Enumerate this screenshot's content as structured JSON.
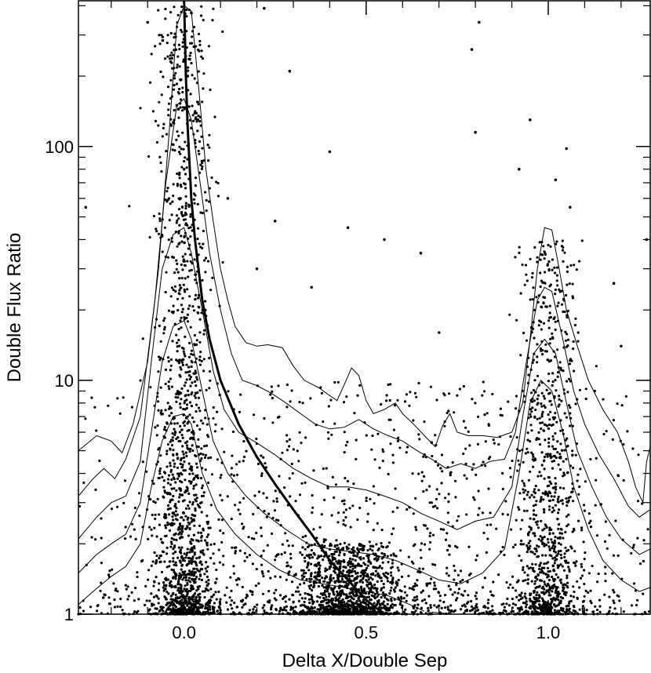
{
  "chart_data": {
    "type": "scatter",
    "title": "",
    "xlabel": "Delta X/Double Sep",
    "ylabel": "Double Flux Ratio",
    "xlim": [
      -0.29,
      1.28
    ],
    "ylim": [
      1,
      420
    ],
    "y_scale": "log",
    "x_ticks": [
      {
        "value": 0.0,
        "label": "0.0"
      },
      {
        "value": 0.5,
        "label": "0.5"
      },
      {
        "value": 1.0,
        "label": "1.0"
      }
    ],
    "y_ticks": [
      {
        "value": 1,
        "label": "1"
      },
      {
        "value": 10,
        "label": "10"
      },
      {
        "value": 100,
        "label": "100"
      }
    ],
    "grid": false,
    "legend": "none",
    "colors": {
      "points": "#000000",
      "contours": "#000000",
      "curve": "#000000",
      "background": "#ffffff"
    },
    "point_density_clusters": [
      {
        "x_center": 0.0,
        "x_spread": 0.04,
        "log_y_max": 2.6,
        "weight": 0.3
      },
      {
        "x_center": 0.45,
        "x_spread": 0.07,
        "log_y_max": 0.3,
        "weight": 0.2
      },
      {
        "x_center": 1.0,
        "x_spread": 0.04,
        "log_y_max": 1.6,
        "weight": 0.18
      },
      {
        "x_center": 0.5,
        "x_spread": 0.5,
        "log_y_max": 1.0,
        "weight": 0.32
      }
    ],
    "sample_points": [
      [
        0.0,
        300
      ],
      [
        0.01,
        200
      ],
      [
        -0.02,
        150
      ],
      [
        0.02,
        120
      ],
      [
        0.0,
        80
      ],
      [
        -0.01,
        60
      ],
      [
        0.22,
        390
      ],
      [
        0.29,
        210
      ],
      [
        0.79,
        260
      ],
      [
        0.81,
        340
      ],
      [
        -0.1,
        340
      ],
      [
        0.95,
        130
      ],
      [
        0.8,
        115
      ],
      [
        0.4,
        95
      ],
      [
        0.92,
        80
      ],
      [
        1.02,
        72
      ],
      [
        1.05,
        98
      ],
      [
        1.06,
        55
      ],
      [
        -0.27,
        55
      ],
      [
        0.12,
        60
      ],
      [
        0.25,
        48
      ],
      [
        0.45,
        45
      ],
      [
        0.55,
        40
      ],
      [
        0.65,
        35
      ],
      [
        1.18,
        26
      ],
      [
        1.2,
        14
      ],
      [
        1.27,
        40
      ],
      [
        0.2,
        30
      ],
      [
        0.35,
        25
      ],
      [
        0.7,
        16
      ]
    ],
    "contour_levels": [
      {
        "level": 1,
        "points": [
          [
            -0.29,
            5.0
          ],
          [
            -0.24,
            5.8
          ],
          [
            -0.2,
            5.5
          ],
          [
            -0.17,
            4.9
          ],
          [
            -0.14,
            6.5
          ],
          [
            -0.1,
            12
          ],
          [
            -0.07,
            30
          ],
          [
            -0.04,
            120
          ],
          [
            -0.02,
            330
          ],
          [
            0.0,
            400
          ],
          [
            0.02,
            380
          ],
          [
            0.04,
            180
          ],
          [
            0.06,
            80
          ],
          [
            0.08,
            48
          ],
          [
            0.1,
            30
          ],
          [
            0.12,
            22
          ],
          [
            0.14,
            17
          ],
          [
            0.17,
            14.5
          ],
          [
            0.2,
            14
          ],
          [
            0.23,
            14.2
          ],
          [
            0.27,
            13.8
          ],
          [
            0.3,
            11.5
          ],
          [
            0.33,
            10
          ],
          [
            0.37,
            9.3
          ],
          [
            0.4,
            8.6
          ],
          [
            0.42,
            8.2
          ],
          [
            0.44,
            9.6
          ],
          [
            0.46,
            11.3
          ],
          [
            0.48,
            10.5
          ],
          [
            0.5,
            8.2
          ],
          [
            0.52,
            7.2
          ],
          [
            0.55,
            7.5
          ],
          [
            0.58,
            8
          ],
          [
            0.6,
            7.2
          ],
          [
            0.63,
            6.5
          ],
          [
            0.66,
            5.8
          ],
          [
            0.69,
            5.2
          ],
          [
            0.71,
            6.4
          ],
          [
            0.73,
            7.2
          ],
          [
            0.75,
            6.0
          ],
          [
            0.78,
            5.8
          ],
          [
            0.82,
            5.8
          ],
          [
            0.86,
            5.7
          ],
          [
            0.9,
            6.0
          ],
          [
            0.93,
            8
          ],
          [
            0.95,
            15
          ],
          [
            0.97,
            30
          ],
          [
            0.99,
            45
          ],
          [
            1.01,
            44
          ],
          [
            1.03,
            30
          ],
          [
            1.05,
            20
          ],
          [
            1.08,
            14
          ],
          [
            1.11,
            10
          ],
          [
            1.15,
            7.5
          ],
          [
            1.19,
            6
          ],
          [
            1.22,
            4.5
          ],
          [
            1.24,
            3.5
          ],
          [
            1.26,
            3.0
          ],
          [
            1.27,
            4.5
          ],
          [
            1.28,
            5.2
          ]
        ]
      },
      {
        "level": 2,
        "points": [
          [
            -0.29,
            3.2
          ],
          [
            -0.25,
            3.8
          ],
          [
            -0.22,
            4.2
          ],
          [
            -0.19,
            3.8
          ],
          [
            -0.16,
            4.6
          ],
          [
            -0.12,
            7
          ],
          [
            -0.08,
            22
          ],
          [
            -0.05,
            70
          ],
          [
            -0.02,
            150
          ],
          [
            0.0,
            160
          ],
          [
            0.02,
            130
          ],
          [
            0.05,
            60
          ],
          [
            0.07,
            35
          ],
          [
            0.1,
            20
          ],
          [
            0.13,
            13
          ],
          [
            0.16,
            10
          ],
          [
            0.2,
            9.5
          ],
          [
            0.24,
            8.8
          ],
          [
            0.28,
            8.0
          ],
          [
            0.32,
            7.2
          ],
          [
            0.36,
            6.5
          ],
          [
            0.4,
            6.2
          ],
          [
            0.44,
            6.3
          ],
          [
            0.48,
            6.8
          ],
          [
            0.52,
            6.2
          ],
          [
            0.56,
            5.8
          ],
          [
            0.6,
            5.5
          ],
          [
            0.64,
            5.0
          ],
          [
            0.68,
            4.6
          ],
          [
            0.72,
            4.2
          ],
          [
            0.76,
            4.4
          ],
          [
            0.8,
            4.2
          ],
          [
            0.84,
            4.5
          ],
          [
            0.88,
            4.6
          ],
          [
            0.91,
            6
          ],
          [
            0.94,
            12
          ],
          [
            0.97,
            22
          ],
          [
            0.99,
            25
          ],
          [
            1.01,
            24
          ],
          [
            1.04,
            15
          ],
          [
            1.07,
            9
          ],
          [
            1.1,
            6.5
          ],
          [
            1.14,
            4.8
          ],
          [
            1.18,
            3.8
          ],
          [
            1.22,
            2.9
          ],
          [
            1.25,
            2.6
          ],
          [
            1.28,
            2.8
          ]
        ]
      },
      {
        "level": 3,
        "points": [
          [
            -0.29,
            2.1
          ],
          [
            -0.24,
            2.6
          ],
          [
            -0.2,
            3.0
          ],
          [
            -0.16,
            3.2
          ],
          [
            -0.12,
            4.5
          ],
          [
            -0.09,
            12
          ],
          [
            -0.06,
            30
          ],
          [
            -0.03,
            42
          ],
          [
            0.0,
            45
          ],
          [
            0.02,
            35
          ],
          [
            0.05,
            20
          ],
          [
            0.08,
            11
          ],
          [
            0.11,
            7.5
          ],
          [
            0.15,
            6
          ],
          [
            0.2,
            5.4
          ],
          [
            0.25,
            4.8
          ],
          [
            0.3,
            4.2
          ],
          [
            0.35,
            3.8
          ],
          [
            0.4,
            3.5
          ],
          [
            0.45,
            3.5
          ],
          [
            0.5,
            3.4
          ],
          [
            0.55,
            3.2
          ],
          [
            0.6,
            3.0
          ],
          [
            0.65,
            2.7
          ],
          [
            0.7,
            2.5
          ],
          [
            0.75,
            2.3
          ],
          [
            0.8,
            2.5
          ],
          [
            0.85,
            2.6
          ],
          [
            0.9,
            3.5
          ],
          [
            0.93,
            7
          ],
          [
            0.96,
            13
          ],
          [
            0.99,
            15
          ],
          [
            1.02,
            13
          ],
          [
            1.05,
            8
          ],
          [
            1.08,
            5
          ],
          [
            1.12,
            3.5
          ],
          [
            1.16,
            2.6
          ],
          [
            1.2,
            2.1
          ],
          [
            1.25,
            1.8
          ],
          [
            1.28,
            1.9
          ]
        ]
      },
      {
        "level": 4,
        "points": [
          [
            -0.29,
            1.5
          ],
          [
            -0.24,
            1.8
          ],
          [
            -0.2,
            2.0
          ],
          [
            -0.16,
            2.2
          ],
          [
            -0.12,
            3.0
          ],
          [
            -0.09,
            6
          ],
          [
            -0.06,
            12
          ],
          [
            -0.03,
            17
          ],
          [
            0.0,
            18
          ],
          [
            0.02,
            15
          ],
          [
            0.05,
            9
          ],
          [
            0.08,
            5.5
          ],
          [
            0.12,
            4
          ],
          [
            0.17,
            3.2
          ],
          [
            0.22,
            2.7
          ],
          [
            0.28,
            2.3
          ],
          [
            0.34,
            2.0
          ],
          [
            0.4,
            1.9
          ],
          [
            0.46,
            1.85
          ],
          [
            0.52,
            1.8
          ],
          [
            0.58,
            1.7
          ],
          [
            0.64,
            1.55
          ],
          [
            0.7,
            1.4
          ],
          [
            0.76,
            1.35
          ],
          [
            0.82,
            1.5
          ],
          [
            0.88,
            1.9
          ],
          [
            0.92,
            4
          ],
          [
            0.95,
            8
          ],
          [
            0.98,
            10
          ],
          [
            1.01,
            9
          ],
          [
            1.04,
            6
          ],
          [
            1.07,
            3.5
          ],
          [
            1.11,
            2.3
          ],
          [
            1.15,
            1.7
          ],
          [
            1.2,
            1.4
          ],
          [
            1.25,
            1.25
          ],
          [
            1.28,
            1.3
          ]
        ]
      },
      {
        "level": 5,
        "points": [
          [
            -0.29,
            1.1
          ],
          [
            -0.25,
            1.25
          ],
          [
            -0.2,
            1.45
          ],
          [
            -0.16,
            1.6
          ],
          [
            -0.12,
            2.0
          ],
          [
            -0.09,
            3.5
          ],
          [
            -0.06,
            5.5
          ],
          [
            -0.03,
            7
          ],
          [
            0.0,
            7.2
          ],
          [
            0.02,
            6.5
          ],
          [
            0.05,
            4
          ],
          [
            0.09,
            2.8
          ],
          [
            0.14,
            2.2
          ],
          [
            0.2,
            1.8
          ],
          [
            0.26,
            1.55
          ],
          [
            0.32,
            1.4
          ],
          [
            0.38,
            1.35
          ],
          [
            0.44,
            1.3
          ],
          [
            0.5,
            1.25
          ],
          [
            0.56,
            1.2
          ],
          [
            0.62,
            1.1
          ],
          [
            0.66,
            1.03
          ]
        ]
      },
      {
        "level": 6,
        "points": [
          [
            0.68,
            1.02
          ],
          [
            0.74,
            1.0
          ]
        ]
      }
    ],
    "curve": {
      "label": "",
      "points": [
        [
          0.0,
          420
        ],
        [
          0.005,
          200
        ],
        [
          0.01,
          120
        ],
        [
          0.02,
          60
        ],
        [
          0.03,
          40
        ],
        [
          0.05,
          22
        ],
        [
          0.07,
          15
        ],
        [
          0.1,
          10
        ],
        [
          0.15,
          6.5
        ],
        [
          0.2,
          4.7
        ],
        [
          0.25,
          3.6
        ],
        [
          0.3,
          2.8
        ],
        [
          0.35,
          2.2
        ],
        [
          0.4,
          1.7
        ],
        [
          0.45,
          1.4
        ],
        [
          0.5,
          1.15
        ],
        [
          0.55,
          1.0
        ]
      ]
    }
  }
}
